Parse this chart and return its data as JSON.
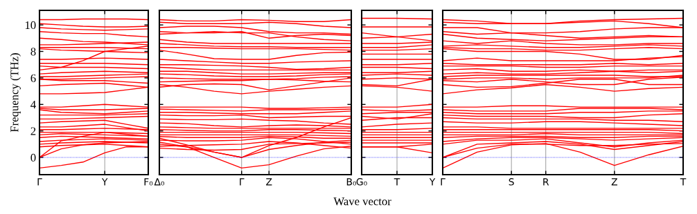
{
  "chart_data": [
    {
      "type": "line",
      "ylabel": "Frequency (THz)",
      "categories": [
        "Γ",
        null,
        null,
        "Y",
        null,
        "F₀"
      ],
      "ylim": [
        -1.3,
        11.1
      ],
      "yticks": [
        0,
        2,
        4,
        6,
        8,
        10
      ],
      "ref_lines": [
        {
          "axis": "y",
          "value": 0,
          "label": null,
          "color": "#0000ff",
          "line_style": "dotted"
        },
        {
          "axis": "x",
          "value": "Y",
          "label": null,
          "color": "#999999"
        }
      ],
      "series": [
        {
          "color": "#ff0000",
          "values": [
            10.4,
            10.4,
            10.45,
            10.45,
            10.45,
            10.4
          ]
        },
        {
          "color": "#ff0000",
          "values": [
            10.1,
            10.0,
            9.9,
            9.85,
            9.85,
            9.9
          ]
        },
        {
          "color": "#ff0000",
          "values": [
            9.8,
            9.7,
            9.65,
            9.6,
            9.65,
            9.7
          ]
        },
        {
          "color": "#ff0000",
          "values": [
            9.5,
            9.4,
            9.35,
            9.35,
            9.2,
            9.1
          ]
        },
        {
          "color": "#ff0000",
          "values": [
            9.0,
            8.9,
            8.75,
            8.7,
            8.6,
            8.5
          ]
        },
        {
          "color": "#ff0000",
          "values": [
            8.5,
            8.5,
            8.55,
            8.6,
            8.65,
            8.7
          ]
        },
        {
          "color": "#ff0000",
          "values": [
            8.3,
            8.3,
            8.3,
            8.3,
            8.25,
            8.2
          ]
        },
        {
          "color": "#ff0000",
          "values": [
            8.2,
            8.1,
            8.05,
            8.0,
            7.95,
            7.9
          ]
        },
        {
          "color": "#ff0000",
          "values": [
            7.4,
            7.4,
            7.45,
            7.5,
            7.45,
            7.4
          ]
        },
        {
          "color": "#ff0000",
          "values": [
            7.1,
            7.1,
            7.1,
            7.1,
            7.05,
            7.0
          ]
        },
        {
          "color": "#ff0000",
          "values": [
            6.9,
            6.8,
            6.8,
            6.8,
            6.75,
            6.7
          ]
        },
        {
          "color": "#ff0000",
          "values": [
            6.6,
            6.8,
            7.3,
            8.0,
            8.2,
            8.4
          ]
        },
        {
          "color": "#ff0000",
          "values": [
            6.3,
            6.4,
            6.45,
            6.5,
            6.45,
            6.4
          ]
        },
        {
          "color": "#ff0000",
          "values": [
            6.1,
            6.1,
            6.15,
            6.2,
            6.25,
            6.3
          ]
        },
        {
          "color": "#ff0000",
          "values": [
            5.9,
            5.9,
            5.95,
            6.0,
            6.05,
            6.1
          ]
        },
        {
          "color": "#ff0000",
          "values": [
            5.9,
            5.8,
            5.8,
            5.8,
            5.7,
            5.6
          ]
        },
        {
          "color": "#ff0000",
          "values": [
            5.4,
            5.5,
            5.55,
            5.6,
            5.45,
            5.3
          ]
        },
        {
          "color": "#ff0000",
          "values": [
            4.8,
            4.8,
            4.85,
            4.9,
            5.1,
            5.3
          ]
        },
        {
          "color": "#ff0000",
          "values": [
            3.8,
            3.8,
            3.9,
            4.0,
            3.9,
            3.8
          ]
        },
        {
          "color": "#ff0000",
          "values": [
            3.7,
            3.6,
            3.6,
            3.6,
            3.65,
            3.7
          ]
        },
        {
          "color": "#ff0000",
          "values": [
            3.6,
            3.4,
            3.35,
            3.3,
            3.4,
            3.5
          ]
        },
        {
          "color": "#ff0000",
          "values": [
            3.2,
            3.2,
            3.2,
            3.2,
            3.25,
            3.3
          ]
        },
        {
          "color": "#ff0000",
          "values": [
            2.9,
            2.9,
            2.95,
            3.0,
            3.05,
            3.1
          ]
        },
        {
          "color": "#ff0000",
          "values": [
            2.6,
            2.7,
            2.75,
            2.8,
            2.5,
            2.2
          ]
        },
        {
          "color": "#ff0000",
          "values": [
            2.3,
            2.3,
            2.4,
            2.5,
            2.25,
            2.0
          ]
        },
        {
          "color": "#ff0000",
          "values": [
            2.1,
            2.1,
            2.15,
            2.2,
            2.15,
            2.1
          ]
        },
        {
          "color": "#ff0000",
          "values": [
            1.9,
            1.9,
            1.9,
            1.9,
            1.85,
            1.8
          ]
        },
        {
          "color": "#ff0000",
          "values": [
            1.7,
            1.8,
            1.75,
            1.7,
            1.65,
            1.6
          ]
        },
        {
          "color": "#ff0000",
          "values": [
            1.5,
            1.6,
            1.55,
            1.5,
            1.45,
            1.4
          ]
        },
        {
          "color": "#ff0000",
          "values": [
            1.2,
            1.3,
            1.35,
            1.4,
            1.35,
            1.3
          ]
        },
        {
          "color": "#ff0000",
          "values": [
            1.0,
            1.1,
            1.15,
            1.2,
            1.15,
            1.1
          ]
        },
        {
          "color": "#ff0000",
          "values": [
            0.8,
            0.9,
            0.95,
            1.0,
            0.9,
            0.8
          ]
        },
        {
          "color": "#ff0000",
          "values": [
            0,
            1.25,
            1.6,
            1.9,
            1.75,
            1.6
          ]
        },
        {
          "color": "#ff0000",
          "values": [
            0,
            0.65,
            0.95,
            1.1,
            1.15,
            1.2
          ]
        },
        {
          "color": "#ff0000",
          "values": [
            -0.8,
            -0.6,
            -0.35,
            0.35,
            0.8,
            0.8
          ]
        }
      ]
    },
    {
      "type": "line",
      "xlabel": "Wave vector",
      "grid": "x",
      "tick_labels": "x",
      "categories": [
        "Δ₀",
        null,
        null,
        "Γ",
        "Z",
        null,
        null,
        "B₀"
      ],
      "ylim": [
        -1.3,
        11.1
      ],
      "yticks": [
        0,
        2,
        4,
        6,
        8,
        10
      ],
      "ref_lines": [
        {
          "axis": "y",
          "value": 0,
          "label": null,
          "color": "#0000ff",
          "line_style": "dotted"
        }
      ],
      "series": [
        {
          "color": "#ff0000",
          "values": [
            10.4,
            10.3,
            10.3,
            10.4,
            10.35,
            10.25,
            10.25,
            10.4
          ]
        },
        {
          "color": "#ff0000",
          "values": [
            10.2,
            10.1,
            10.1,
            10.1,
            10.2,
            10.1,
            9.9,
            9.8
          ]
        },
        {
          "color": "#ff0000",
          "values": [
            9.8,
            9.9,
            9.9,
            9.8,
            9.5,
            9.4,
            9.4,
            9.3
          ]
        },
        {
          "color": "#ff0000",
          "values": [
            9.5,
            9.4,
            9.4,
            9.5,
            9.0,
            9.2,
            9.3,
            9.2
          ]
        },
        {
          "color": "#ff0000",
          "values": [
            9.3,
            9.4,
            9.5,
            9.4,
            9.4,
            9.1,
            8.9,
            8.8
          ]
        },
        {
          "color": "#ff0000",
          "values": [
            8.9,
            8.7,
            8.6,
            8.6,
            8.6,
            8.6,
            8.6,
            8.6
          ]
        },
        {
          "color": "#ff0000",
          "values": [
            8.6,
            8.5,
            8.4,
            8.35,
            8.35,
            8.3,
            8.3,
            8.3
          ]
        },
        {
          "color": "#ff0000",
          "values": [
            8.3,
            8.3,
            8.25,
            8.2,
            8.2,
            8.2,
            8.15,
            8.1
          ]
        },
        {
          "color": "#ff0000",
          "values": [
            8.1,
            7.8,
            7.45,
            7.4,
            7.4,
            7.7,
            7.9,
            7.95
          ]
        },
        {
          "color": "#ff0000",
          "values": [
            7.4,
            7.3,
            7.2,
            7.1,
            7.1,
            7.2,
            7.25,
            7.3
          ]
        },
        {
          "color": "#ff0000",
          "values": [
            7.0,
            7.0,
            6.95,
            6.9,
            6.8,
            6.65,
            6.7,
            6.8
          ]
        },
        {
          "color": "#ff0000",
          "values": [
            6.8,
            6.7,
            6.6,
            6.6,
            6.6,
            6.6,
            6.6,
            6.6
          ]
        },
        {
          "color": "#ff0000",
          "values": [
            6.5,
            6.5,
            6.4,
            6.3,
            6.3,
            6.35,
            6.4,
            6.4
          ]
        },
        {
          "color": "#ff0000",
          "values": [
            6.3,
            6.25,
            6.15,
            6.1,
            6.1,
            6.15,
            6.25,
            6.3
          ]
        },
        {
          "color": "#ff0000",
          "values": [
            6.0,
            5.95,
            5.9,
            5.9,
            5.9,
            5.95,
            6.05,
            6.1
          ]
        },
        {
          "color": "#ff0000",
          "values": [
            5.7,
            5.75,
            5.8,
            5.8,
            5.9,
            5.85,
            5.75,
            5.7
          ]
        },
        {
          "color": "#ff0000",
          "values": [
            5.3,
            5.5,
            5.55,
            5.5,
            5.1,
            5.4,
            5.7,
            6.0
          ]
        },
        {
          "color": "#ff0000",
          "values": [
            5.5,
            5.3,
            5.0,
            4.8,
            5.0,
            5.15,
            5.3,
            5.4
          ]
        },
        {
          "color": "#ff0000",
          "values": [
            3.8,
            3.8,
            3.8,
            3.8,
            3.7,
            3.7,
            3.75,
            3.8
          ]
        },
        {
          "color": "#ff0000",
          "values": [
            3.65,
            3.6,
            3.55,
            3.5,
            3.6,
            3.6,
            3.6,
            3.65
          ]
        },
        {
          "color": "#ff0000",
          "values": [
            3.4,
            3.4,
            3.35,
            3.3,
            3.3,
            3.3,
            3.4,
            3.5
          ]
        },
        {
          "color": "#ff0000",
          "values": [
            3.2,
            3.15,
            3.15,
            3.2,
            3.0,
            3.05,
            3.1,
            3.1
          ]
        },
        {
          "color": "#ff0000",
          "values": [
            2.9,
            2.85,
            2.85,
            2.9,
            2.8,
            2.75,
            2.6,
            2.5
          ]
        },
        {
          "color": "#ff0000",
          "values": [
            2.6,
            2.55,
            2.4,
            2.3,
            2.4,
            2.45,
            2.4,
            2.3
          ]
        },
        {
          "color": "#ff0000",
          "values": [
            2.3,
            2.25,
            2.2,
            2.2,
            2.2,
            2.2,
            2.2,
            2.2
          ]
        },
        {
          "color": "#ff0000",
          "values": [
            2.1,
            2.05,
            2.0,
            2.0,
            2.1,
            2.1,
            2.05,
            2.0
          ]
        },
        {
          "color": "#ff0000",
          "values": [
            1.9,
            1.9,
            1.9,
            1.9,
            1.9,
            1.9,
            1.85,
            1.8
          ]
        },
        {
          "color": "#ff0000",
          "values": [
            1.7,
            1.7,
            1.7,
            1.7,
            1.7,
            1.7,
            1.65,
            1.6
          ]
        },
        {
          "color": "#ff0000",
          "values": [
            1.58,
            1.5,
            1.5,
            1.5,
            1.6,
            1.55,
            1.45,
            1.45
          ]
        },
        {
          "color": "#ff0000",
          "values": [
            1.3,
            1.25,
            1.25,
            1.3,
            1.5,
            1.4,
            1.2,
            1.0
          ]
        },
        {
          "color": "#ff0000",
          "values": [
            0.85,
            0.9,
            0.95,
            1.0,
            1.2,
            1.1,
            0.9,
            0.7
          ]
        },
        {
          "color": "#ff0000",
          "values": [
            0.7,
            0.6,
            0.55,
            0.6,
            1.0,
            1.05,
            1.1,
            1.15
          ]
        },
        {
          "color": "#ff0000",
          "values": [
            1.0,
            0.8,
            0.4,
            0,
            0.9,
            1.5,
            2.3,
            3.0
          ]
        },
        {
          "color": "#ff0000",
          "values": [
            1.45,
            0.95,
            0.4,
            0,
            0.6,
            0.9,
            1.15,
            1.3
          ]
        },
        {
          "color": "#ff0000",
          "values": [
            1.15,
            0.8,
            0.0,
            -0.8,
            -0.55,
            0.1,
            0.65,
            0.85
          ]
        }
      ]
    },
    {
      "type": "line",
      "tick_labels": "x",
      "categories": [
        "G₀",
        "T",
        "Y"
      ],
      "ylim": [
        -1.3,
        11.1
      ],
      "yticks": [
        0,
        2,
        4,
        6,
        8,
        10
      ],
      "ref_lines": [
        {
          "axis": "y",
          "value": 0,
          "label": null,
          "color": "#0000ff",
          "line_style": "dotted"
        },
        {
          "axis": "x",
          "value": "T",
          "label": null,
          "color": "#999999"
        }
      ],
      "series": [
        {
          "color": "#ff0000",
          "values": [
            10.5,
            10.5,
            10.45
          ]
        },
        {
          "color": "#ff0000",
          "values": [
            9.85,
            9.85,
            9.85
          ]
        },
        {
          "color": "#ff0000",
          "values": [
            9.4,
            9.1,
            9.3
          ]
        },
        {
          "color": "#ff0000",
          "values": [
            9.0,
            9.1,
            8.8
          ]
        },
        {
          "color": "#ff0000",
          "values": [
            8.6,
            8.6,
            8.7
          ]
        },
        {
          "color": "#ff0000",
          "values": [
            8.3,
            8.3,
            8.5
          ]
        },
        {
          "color": "#ff0000",
          "values": [
            8.1,
            8.1,
            8.2
          ]
        },
        {
          "color": "#ff0000",
          "values": [
            7.8,
            7.8,
            7.8
          ]
        },
        {
          "color": "#ff0000",
          "values": [
            7.4,
            7.4,
            7.4
          ]
        },
        {
          "color": "#ff0000",
          "values": [
            7.0,
            7.0,
            7.1
          ]
        },
        {
          "color": "#ff0000",
          "values": [
            6.8,
            6.8,
            6.7
          ]
        },
        {
          "color": "#ff0000",
          "values": [
            6.4,
            6.4,
            6.5
          ]
        },
        {
          "color": "#ff0000",
          "values": [
            6.2,
            6.3,
            6.2
          ]
        },
        {
          "color": "#ff0000",
          "values": [
            5.9,
            6.0,
            5.9
          ]
        },
        {
          "color": "#ff0000",
          "values": [
            5.5,
            5.4,
            5.9
          ]
        },
        {
          "color": "#ff0000",
          "values": [
            5.4,
            5.3,
            5.0
          ]
        },
        {
          "color": "#ff0000",
          "values": [
            3.8,
            3.8,
            4.0
          ]
        },
        {
          "color": "#ff0000",
          "values": [
            3.6,
            3.5,
            3.6
          ]
        },
        {
          "color": "#ff0000",
          "values": [
            3.3,
            3.4,
            3.4
          ]
        },
        {
          "color": "#ff0000",
          "values": [
            3.1,
            2.9,
            3.3
          ]
        },
        {
          "color": "#ff0000",
          "values": [
            2.8,
            3.0,
            3.0
          ]
        },
        {
          "color": "#ff0000",
          "values": [
            2.3,
            2.5,
            2.6
          ]
        },
        {
          "color": "#ff0000",
          "values": [
            2.1,
            2.1,
            2.2
          ]
        },
        {
          "color": "#ff0000",
          "values": [
            1.9,
            1.9,
            1.9
          ]
        },
        {
          "color": "#ff0000",
          "values": [
            1.7,
            1.7,
            1.7
          ]
        },
        {
          "color": "#ff0000",
          "values": [
            1.5,
            1.5,
            1.5
          ]
        },
        {
          "color": "#ff0000",
          "values": [
            1.3,
            1.3,
            1.3
          ]
        },
        {
          "color": "#ff0000",
          "values": [
            1.1,
            1.1,
            1.1
          ]
        },
        {
          "color": "#ff0000",
          "values": [
            0.8,
            0.8,
            1.0
          ]
        },
        {
          "color": "#ff0000",
          "values": [
            0.8,
            0.8,
            0.35
          ]
        }
      ]
    },
    {
      "type": "line",
      "grid": "x",
      "tick_labels": "x",
      "categories": [
        "Γ",
        null,
        "S",
        "R",
        null,
        "Z",
        null,
        "T"
      ],
      "ylim": [
        -1.3,
        11.1
      ],
      "yticks": [
        0,
        2,
        4,
        6,
        8,
        10
      ],
      "ref_lines": [
        {
          "axis": "y",
          "value": 0,
          "label": null,
          "color": "#0000ff",
          "line_style": "dotted"
        }
      ],
      "series": [
        {
          "color": "#ff0000",
          "values": [
            10.4,
            10.3,
            10.1,
            10.1,
            10.3,
            10.4,
            10.45,
            10.5
          ]
        },
        {
          "color": "#ff0000",
          "values": [
            10.2,
            10.1,
            10.1,
            10.1,
            10.2,
            10.3,
            10.1,
            9.8
          ]
        },
        {
          "color": "#ff0000",
          "values": [
            9.8,
            9.8,
            9.4,
            9.4,
            9.5,
            9.7,
            9.8,
            9.8
          ]
        },
        {
          "color": "#ff0000",
          "values": [
            9.5,
            9.3,
            9.4,
            9.2,
            9.0,
            9.1,
            9.2,
            9.1
          ]
        },
        {
          "color": "#ff0000",
          "values": [
            9.3,
            9.0,
            8.9,
            8.8,
            8.9,
            9.0,
            9.1,
            9.1
          ]
        },
        {
          "color": "#ff0000",
          "values": [
            8.8,
            8.6,
            8.8,
            8.6,
            8.5,
            8.5,
            8.6,
            8.6
          ]
        },
        {
          "color": "#ff0000",
          "values": [
            8.4,
            8.5,
            8.4,
            8.3,
            8.3,
            8.4,
            8.5,
            8.4
          ]
        },
        {
          "color": "#ff0000",
          "values": [
            8.3,
            8.2,
            8.2,
            8.1,
            8.1,
            8.2,
            8.3,
            8.2
          ]
        },
        {
          "color": "#ff0000",
          "values": [
            8.2,
            8.0,
            8.0,
            8.0,
            7.8,
            7.4,
            7.4,
            7.7
          ]
        },
        {
          "color": "#ff0000",
          "values": [
            7.3,
            7.5,
            7.3,
            7.3,
            7.3,
            7.3,
            7.5,
            7.6
          ]
        },
        {
          "color": "#ff0000",
          "values": [
            7.1,
            7.0,
            7.0,
            7.0,
            7.0,
            7.1,
            7.0,
            7.1
          ]
        },
        {
          "color": "#ff0000",
          "values": [
            6.9,
            6.9,
            6.9,
            6.8,
            6.8,
            6.9,
            6.9,
            6.9
          ]
        },
        {
          "color": "#ff0000",
          "values": [
            6.6,
            6.7,
            6.5,
            6.5,
            6.6,
            6.5,
            6.6,
            6.6
          ]
        },
        {
          "color": "#ff0000",
          "values": [
            6.3,
            6.4,
            6.3,
            6.3,
            6.4,
            6.5,
            6.4,
            6.5
          ]
        },
        {
          "color": "#ff0000",
          "values": [
            6.1,
            6.2,
            6.2,
            6.2,
            6.2,
            6.2,
            6.1,
            6.1
          ]
        },
        {
          "color": "#ff0000",
          "values": [
            5.9,
            6.0,
            6.0,
            5.9,
            6.0,
            6.0,
            6.0,
            6.2
          ]
        },
        {
          "color": "#ff0000",
          "values": [
            5.8,
            5.7,
            5.9,
            5.7,
            5.5,
            5.5,
            5.9,
            6.05
          ]
        },
        {
          "color": "#ff0000",
          "values": [
            5.5,
            5.3,
            5.35,
            5.6,
            5.9,
            5.9,
            5.5,
            5.5
          ]
        },
        {
          "color": "#ff0000",
          "values": [
            4.8,
            5.1,
            5.25,
            5.5,
            5.3,
            5.0,
            5.2,
            5.3
          ]
        },
        {
          "color": "#ff0000",
          "values": [
            3.8,
            3.8,
            3.9,
            3.9,
            3.8,
            3.8,
            3.8,
            3.8
          ]
        },
        {
          "color": "#ff0000",
          "values": [
            3.6,
            3.5,
            3.5,
            3.5,
            3.7,
            3.7,
            3.7,
            3.6
          ]
        },
        {
          "color": "#ff0000",
          "values": [
            3.4,
            3.3,
            3.3,
            3.3,
            3.4,
            3.4,
            3.5,
            3.5
          ]
        },
        {
          "color": "#ff0000",
          "values": [
            3.2,
            3.1,
            3.1,
            3.1,
            3.0,
            3.0,
            3.2,
            3.3
          ]
        },
        {
          "color": "#ff0000",
          "values": [
            3.0,
            2.9,
            2.9,
            2.9,
            2.9,
            2.8,
            2.8,
            2.7
          ]
        },
        {
          "color": "#ff0000",
          "values": [
            2.7,
            2.6,
            2.6,
            2.7,
            2.7,
            2.6,
            2.5,
            2.4
          ]
        },
        {
          "color": "#ff0000",
          "values": [
            2.3,
            2.3,
            2.2,
            2.2,
            2.2,
            2.2,
            2.2,
            2.2
          ]
        },
        {
          "color": "#ff0000",
          "values": [
            2.1,
            2.1,
            2.1,
            2.1,
            2.1,
            2.1,
            2.1,
            2.0
          ]
        },
        {
          "color": "#ff0000",
          "values": [
            1.9,
            1.9,
            1.9,
            1.9,
            1.9,
            1.9,
            1.9,
            1.8
          ]
        },
        {
          "color": "#ff0000",
          "values": [
            1.7,
            1.7,
            1.7,
            1.8,
            1.7,
            1.7,
            1.7,
            1.7
          ]
        },
        {
          "color": "#ff0000",
          "values": [
            1.5,
            1.6,
            1.6,
            1.6,
            1.5,
            1.5,
            1.6,
            1.6
          ]
        },
        {
          "color": "#ff0000",
          "values": [
            1.2,
            1.4,
            1.5,
            1.5,
            1.4,
            1.3,
            1.4,
            1.5
          ]
        },
        {
          "color": "#ff0000",
          "values": [
            1.0,
            1.3,
            1.3,
            1.4,
            1.1,
            0.8,
            1.1,
            1.3
          ]
        },
        {
          "color": "#ff0000",
          "values": [
            0,
            1.0,
            1.1,
            1.2,
            1.0,
            0.6,
            0.9,
            1.2
          ]
        },
        {
          "color": "#ff0000",
          "values": [
            0,
            0.7,
            1.0,
            1.0,
            0.9,
            0.9,
            1.0,
            1.05
          ]
        },
        {
          "color": "#ff0000",
          "values": [
            -0.8,
            0.4,
            0.95,
            1.05,
            0.4,
            -0.6,
            0.2,
            0.85
          ]
        }
      ]
    }
  ]
}
